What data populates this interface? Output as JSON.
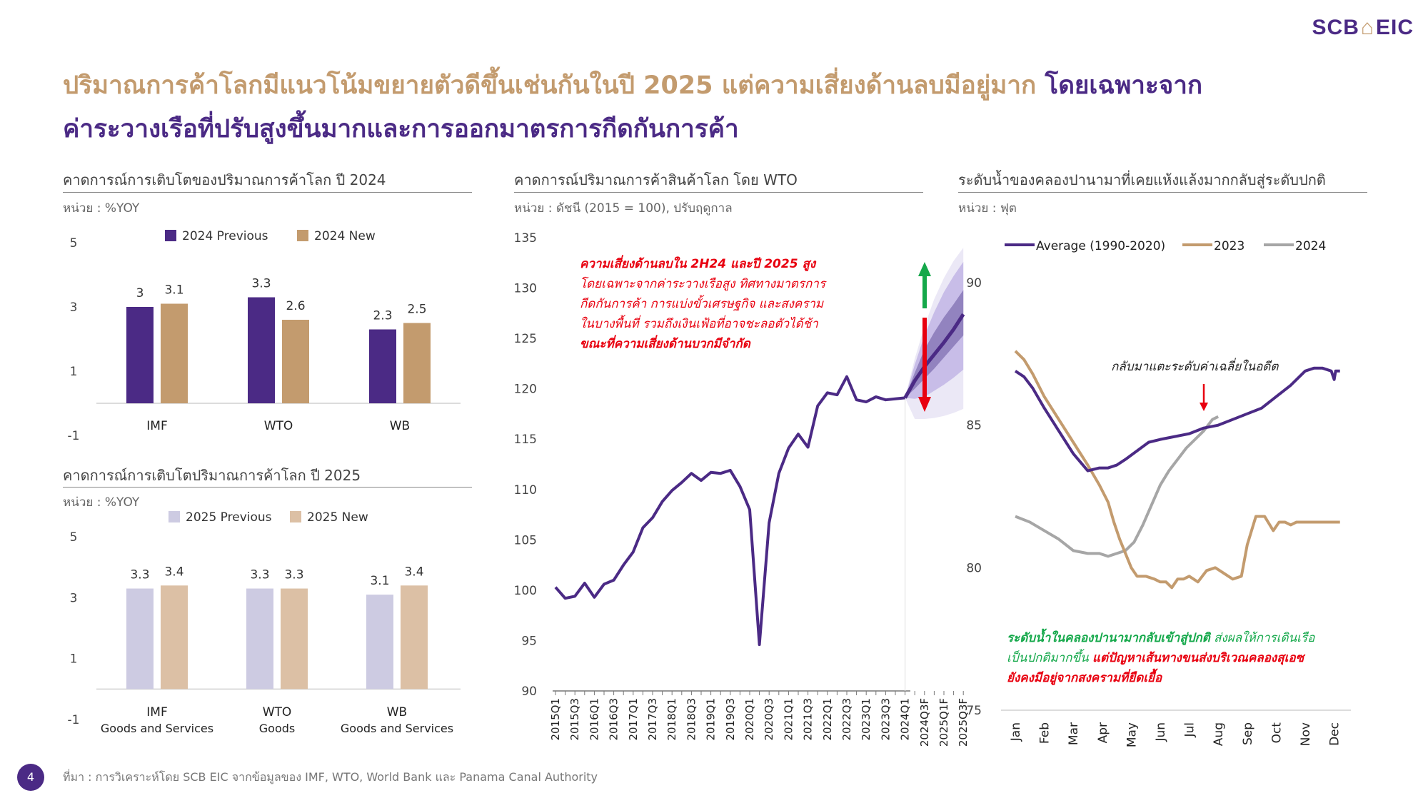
{
  "logo": {
    "left": "SCB",
    "right": "EIC"
  },
  "title": {
    "line1_main": "ปริมาณการค้าโลกมีแนวโน้มขยายตัวดีขึ้นเช่นกันในปี 2025 แต่ความเสี่ยงด้านลบมีอยู่มาก",
    "line1_highlight": "โดยเฉพาะจาก",
    "line2": "ค่าระวางเรือที่ปรับสูงขึ้นมากและการออกมาตรการกีดกันการค้า"
  },
  "panels": {
    "p2024": {
      "title": "คาดการณ์การเติบโตของปริมาณการค้าโลก ปี 2024",
      "unit": "หน่วย : %YOY"
    },
    "p2025": {
      "title": "คาดการณ์การเติบโตปริมาณการค้าโลก ปี 2025",
      "unit": "หน่วย : %YOY"
    },
    "wto": {
      "title": "คาดการณ์ปริมาณการค้าสินค้าโลก โดย WTO",
      "unit": "หน่วย : ดัชนี (2015 = 100), ปรับฤดูกาล"
    },
    "canal": {
      "title": "ระดับน้ำของคลองปานามาที่เคยแห้งแล้งมากกลับสู่ระดับปกติ",
      "unit": "หน่วย : ฟุต"
    }
  },
  "annotations": {
    "wto_red1": "ความเสี่ยงด้านลบใน 2H24 และปี 2025 สูง",
    "wto_red2": "โดยเฉพาะจากค่าระวางเรือสูง ทิศทางมาตรการ",
    "wto_red3": "กีดกันการค้า การแบ่งขั้วเศรษฐกิจ และสงคราม",
    "wto_red4": "ในบางพื้นที่ รวมถึงเงินเฟ้อที่อาจชะลอตัวได้ช้า",
    "wto_red5": "ขณะที่ความเสี่ยงด้านบวกมีจำกัด",
    "canal_arrow_label": "กลับมาแตะระดับค่าเฉลี่ยในอดีต",
    "canal_green1": "ระดับน้ำในคลองปานามากลับเข้าสู่ปกติ",
    "canal_green2": " ส่งผลให้การเดินเรือ",
    "canal_green3": "เป็นปกติมากขึ้น ",
    "canal_red1": "แต่ปัญหาเส้นทางขนส่งบริเวณคลองสุเอซ",
    "canal_red2": "ยังคงมีอยู่จากสงครามที่ยืดเยื้อ"
  },
  "footer": {
    "page": "4",
    "source": "ที่มา : การวิเคราะห์โดย SCB EIC จากข้อมูลของ IMF, WTO, World Bank และ Panama Canal Authority"
  },
  "colors": {
    "purple": "#4b2a85",
    "tan": "#c39b6e",
    "light_purple": "#cdcbe2",
    "light_tan": "#dcc0a5",
    "grey": "#a6a6a6",
    "red": "#e8000f",
    "green": "#14a84a"
  },
  "chart_data": [
    {
      "id": "g2024",
      "type": "bar",
      "categories": [
        "IMF",
        "WTO",
        "WB"
      ],
      "series": [
        {
          "name": "2024 Previous",
          "values": [
            3,
            3.3,
            2.3
          ],
          "labels": [
            "3",
            "3.3",
            "2.3"
          ],
          "color": "#4b2a85"
        },
        {
          "name": "2024 New",
          "values": [
            3.1,
            2.6,
            2.5
          ],
          "labels": [
            "3.1",
            "2.6",
            "2.5"
          ],
          "color": "#c39b6e"
        }
      ],
      "ylim": [
        -1,
        5
      ],
      "yticks": [
        5,
        3,
        1,
        -1
      ],
      "legend": "top"
    },
    {
      "id": "g2025",
      "type": "bar",
      "categories": [
        "IMF",
        "WTO",
        "WB"
      ],
      "category_sublabels": [
        "Goods and Services",
        "Goods",
        "Goods and Services"
      ],
      "series": [
        {
          "name": "2025 Previous",
          "values": [
            3.3,
            3.3,
            3.1
          ],
          "labels": [
            "3.3",
            "3.3",
            "3.1"
          ],
          "color": "#cdcbe2"
        },
        {
          "name": "2025 New",
          "values": [
            3.4,
            3.3,
            3.4
          ],
          "labels": [
            "3.4",
            "3.3",
            "3.4"
          ],
          "color": "#dcc0a5"
        }
      ],
      "ylim": [
        -1,
        5
      ],
      "yticks": [
        5,
        3,
        1,
        -1
      ],
      "legend": "top"
    },
    {
      "id": "wto",
      "type": "line",
      "xlabels": [
        "2015Q1",
        "2015Q3",
        "2016Q1",
        "2016Q3",
        "2017Q1",
        "2017Q3",
        "2018Q1",
        "2018Q3",
        "2019Q1",
        "2019Q3",
        "2020Q1",
        "2020Q3",
        "2021Q1",
        "2021Q3",
        "2022Q1",
        "2022Q3",
        "2023Q1",
        "2023Q3",
        "2024Q1",
        "2024Q3F",
        "2025Q1F",
        "2025Q3F"
      ],
      "ylim": [
        90,
        135
      ],
      "yticks": [
        135,
        130,
        125,
        120,
        115,
        110,
        105,
        100,
        95,
        90
      ],
      "series": [
        {
          "name": "",
          "x": [
            0,
            0.5,
            1,
            1.5,
            2,
            2.5,
            3,
            3.5,
            4,
            4.5,
            5,
            5.5,
            6,
            6.5,
            7,
            7.5,
            8,
            8.5,
            9,
            9.5,
            10,
            10.5,
            11,
            11.5,
            12,
            12.5,
            13,
            13.5,
            14,
            14.5,
            15,
            15.5,
            16,
            16.5,
            17,
            17.5,
            18
          ],
          "values": [
            100.3,
            99.2,
            99.4,
            100.7,
            99.3,
            100.6,
            101.0,
            102.5,
            103.8,
            106.2,
            107.2,
            108.8,
            109.9,
            110.7,
            111.6,
            110.9,
            111.7,
            111.6,
            111.9,
            110.3,
            108.0,
            94.6,
            106.7,
            111.6,
            114.1,
            115.5,
            114.2,
            118.3,
            119.6,
            119.4,
            121.2,
            118.9,
            118.7,
            119.2,
            118.9,
            119.0,
            119.1
          ]
        },
        {
          "name": "",
          "x": [
            18,
            18.5,
            19,
            19.5,
            20,
            20.5,
            21
          ],
          "values": [
            119.1,
            120.8,
            122.2,
            123.4,
            124.6,
            125.9,
            127.4
          ]
        }
      ],
      "fan": {
        "x": [
          18,
          18.5,
          19,
          19.5,
          20,
          20.5,
          21
        ],
        "outer_upper": [
          119.1,
          123.0,
          126.2,
          128.9,
          131.0,
          132.7,
          134.0
        ],
        "outer_lower": [
          119.1,
          117.0,
          117.0,
          117.1,
          117.3,
          117.6,
          118.0
        ],
        "mid_upper": [
          119.1,
          122.4,
          125.3,
          127.6,
          129.6,
          131.2,
          132.6
        ],
        "mid_lower": [
          119.1,
          119.0,
          119.2,
          119.8,
          120.4,
          121.1,
          121.9
        ],
        "inner_upper": [
          119.1,
          121.6,
          123.9,
          125.6,
          127.1,
          128.4,
          129.8
        ],
        "inner_lower": [
          119.1,
          120.0,
          121.0,
          122.0,
          123.1,
          124.2,
          125.3
        ]
      }
    },
    {
      "id": "canal",
      "type": "line",
      "xlabels": [
        "Jan",
        "Feb",
        "Mar",
        "Apr",
        "May",
        "Jun",
        "Jul",
        "Aug",
        "Sep",
        "Oct",
        "Nov",
        "Dec"
      ],
      "ylim": [
        75,
        90
      ],
      "yticks": [
        90,
        85,
        80,
        75
      ],
      "legend": "top",
      "series": [
        {
          "name": "Average (1990-2020)",
          "color": "#4b2a85",
          "x": [
            0,
            0.3,
            0.6,
            1.0,
            1.5,
            2.0,
            2.5,
            2.9,
            3.2,
            3.5,
            3.8,
            4.2,
            4.6,
            5.0,
            5.5,
            6.0,
            6.5,
            7.0,
            7.5,
            8.0,
            8.5,
            9.0,
            9.5,
            10.0,
            10.3,
            10.6,
            10.9,
            11.0,
            11.05,
            11.1,
            11.2
          ],
          "values": [
            86.9,
            86.7,
            86.3,
            85.6,
            84.8,
            84.0,
            83.4,
            83.5,
            83.5,
            83.6,
            83.8,
            84.1,
            84.4,
            84.5,
            84.6,
            84.7,
            84.9,
            85.0,
            85.2,
            85.4,
            85.6,
            86.0,
            86.4,
            86.9,
            87.0,
            87.0,
            86.9,
            86.6,
            86.9,
            86.9,
            86.9
          ]
        },
        {
          "name": "2023",
          "color": "#c39b6e",
          "x": [
            0,
            0.3,
            0.6,
            1.0,
            1.5,
            2.0,
            2.5,
            2.9,
            3.2,
            3.4,
            3.6,
            3.8,
            4.0,
            4.2,
            4.5,
            4.8,
            5.0,
            5.2,
            5.4,
            5.6,
            5.8,
            6.0,
            6.3,
            6.6,
            6.9,
            7.2,
            7.5,
            7.8,
            8.0,
            8.3,
            8.6,
            8.9,
            9.1,
            9.3,
            9.5,
            9.7,
            9.9,
            10.1,
            10.4,
            10.7,
            11.0,
            11.2
          ],
          "values": [
            87.6,
            87.3,
            86.8,
            86.0,
            85.2,
            84.4,
            83.6,
            82.9,
            82.3,
            81.6,
            81.0,
            80.5,
            80.0,
            79.7,
            79.7,
            79.6,
            79.5,
            79.5,
            79.3,
            79.6,
            79.6,
            79.7,
            79.5,
            79.9,
            80.0,
            79.8,
            79.6,
            79.7,
            80.8,
            81.8,
            81.8,
            81.3,
            81.6,
            81.6,
            81.5,
            81.6,
            81.6,
            81.6,
            81.6,
            81.6,
            81.6,
            81.6
          ]
        },
        {
          "name": "2024",
          "color": "#a6a6a6",
          "x": [
            0,
            0.5,
            1.0,
            1.5,
            2.0,
            2.5,
            2.9,
            3.2,
            3.5,
            3.8,
            4.1,
            4.4,
            4.7,
            5.0,
            5.3,
            5.6,
            5.9,
            6.2,
            6.5,
            6.8,
            7.0
          ],
          "values": [
            81.8,
            81.6,
            81.3,
            81.0,
            80.6,
            80.5,
            80.5,
            80.4,
            80.5,
            80.6,
            80.9,
            81.5,
            82.2,
            82.9,
            83.4,
            83.8,
            84.2,
            84.5,
            84.8,
            85.2,
            85.3
          ]
        }
      ]
    }
  ]
}
